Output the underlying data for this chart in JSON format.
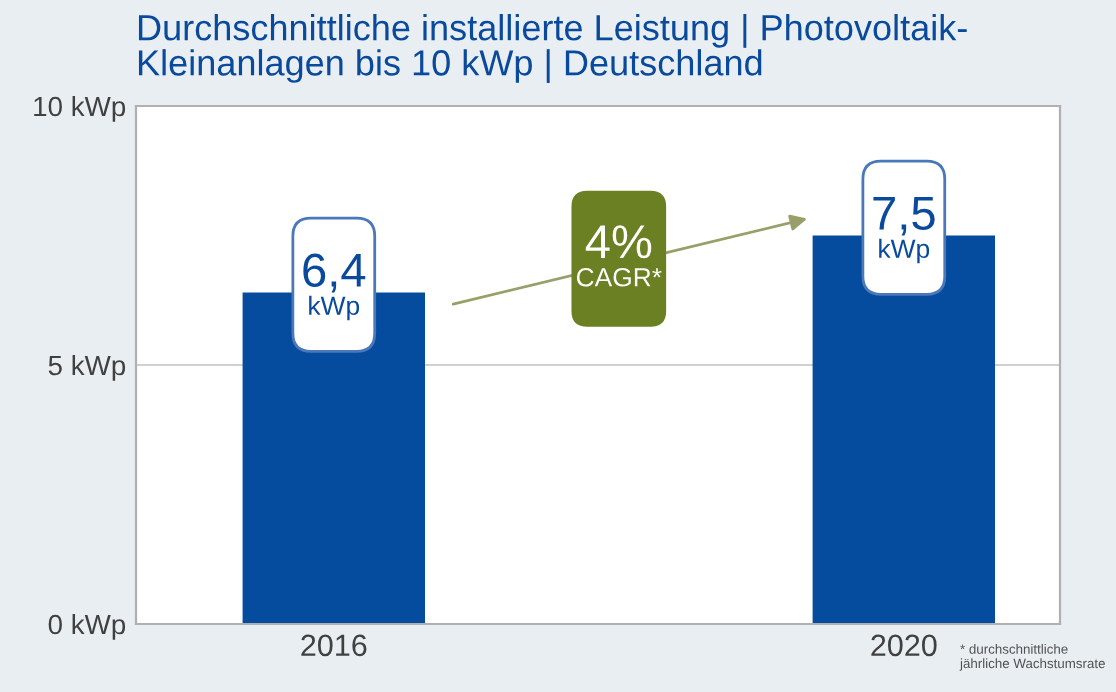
{
  "chart_data": {
    "type": "bar",
    "title": "Durchschnittliche installierte Leistung | Photovoltaik-\nKleinanlagen bis 10 kWp | Deutschland",
    "categories": [
      "2016",
      "2020"
    ],
    "values": [
      6.4,
      7.5
    ],
    "color": "#054c9e",
    "value_labels": [
      "6,4\nkWp",
      "7,5\nkWp"
    ],
    "ylim": [
      0,
      10
    ],
    "yticks": [
      {
        "value": 0,
        "label": "0 kWp"
      },
      {
        "value": 5,
        "label": "5 kWp"
      },
      {
        "value": 10,
        "label": "10 kWp"
      }
    ],
    "grid": "y",
    "annotations": [
      "4%\nCAGR*",
      "* durchschnittliche\njährliche Wachstumsrate"
    ]
  }
}
